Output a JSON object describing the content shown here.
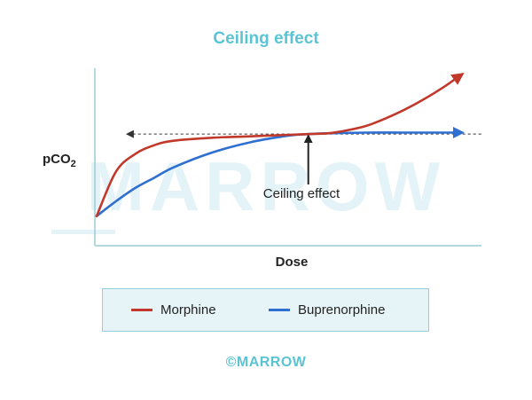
{
  "chart_data": {
    "type": "line",
    "title": "Ceiling effect",
    "xlabel": "Dose",
    "ylabel": "pCO",
    "ylabel_subscript": "2",
    "annotation": "Ceiling effect",
    "legend_position": "bottom",
    "watermark": "MARROW",
    "grid": false,
    "series": [
      {
        "name": "Morphine",
        "color": "#c0392b",
        "x": [
          0,
          0.05,
          0.1,
          0.15,
          0.2,
          0.3,
          0.4,
          0.5,
          0.55,
          0.6,
          0.65,
          0.7,
          0.75,
          0.8,
          0.85,
          0.9,
          0.95
        ],
        "y": [
          0.2,
          0.5,
          0.62,
          0.68,
          0.71,
          0.73,
          0.74,
          0.75,
          0.755,
          0.76,
          0.78,
          0.81,
          0.86,
          0.92,
          0.99,
          1.07,
          1.16
        ]
      },
      {
        "name": "Buprenorphine",
        "color": "#2e6fd1",
        "x": [
          0,
          0.05,
          0.1,
          0.15,
          0.2,
          0.3,
          0.4,
          0.5,
          0.55,
          0.6,
          0.7,
          0.8,
          0.9,
          0.95
        ],
        "y": [
          0.2,
          0.3,
          0.39,
          0.46,
          0.53,
          0.63,
          0.7,
          0.745,
          0.755,
          0.76,
          0.765,
          0.765,
          0.765,
          0.765
        ]
      }
    ],
    "ceiling_line": {
      "y": 0.755,
      "x_start": 0.08,
      "x_end": 1.0
    },
    "ceiling_marker_x": 0.55,
    "xlim": [
      0,
      1
    ],
    "ylim": [
      0,
      1.2
    ]
  },
  "credit": "©MARROW",
  "colors": {
    "title": "#5bc4d4",
    "axis": "#9ccbd6",
    "watermark": "#e3f3f7",
    "text": "#222222"
  }
}
